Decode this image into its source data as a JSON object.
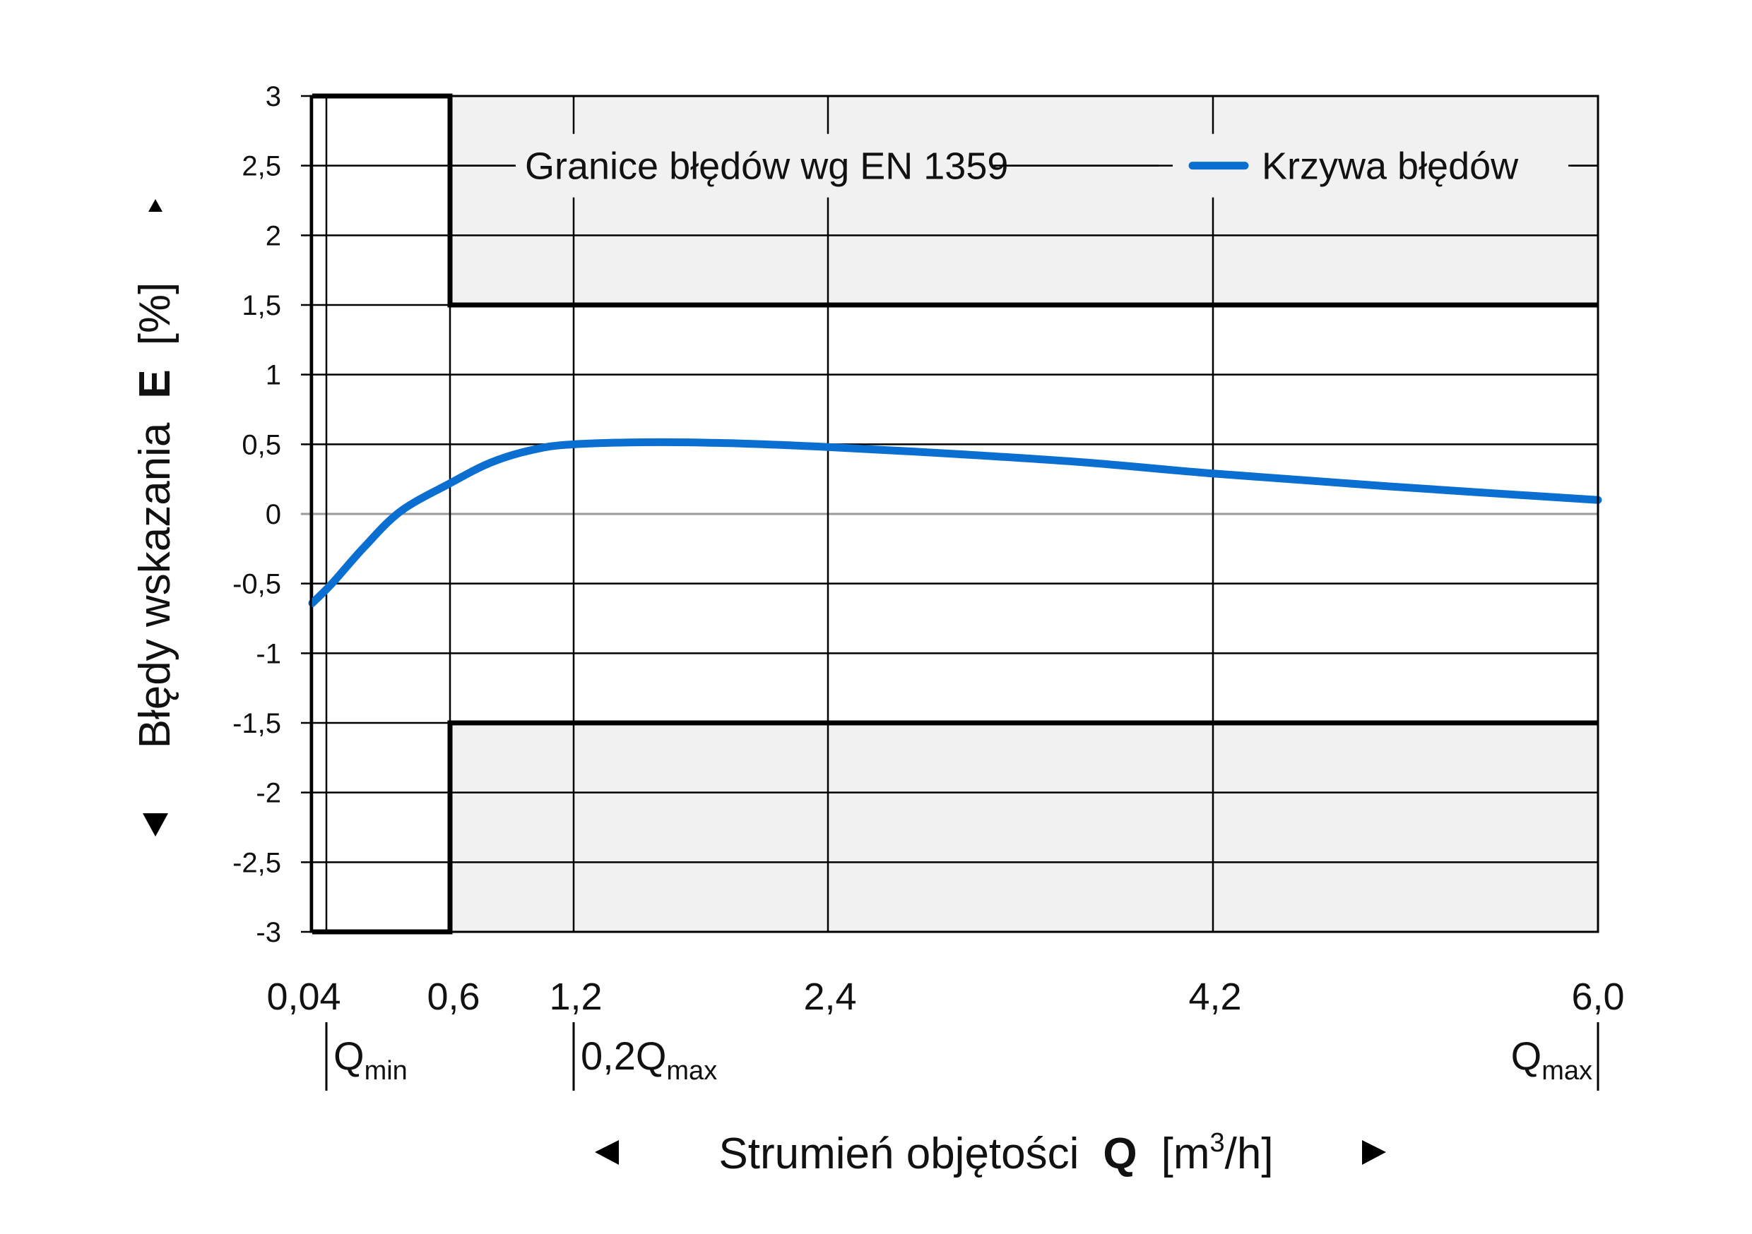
{
  "chart_data": {
    "type": "line",
    "ylabel": {
      "text": "Błędy wskazania",
      "symbol": "E",
      "unit": "[%]"
    },
    "xlabel": {
      "text": "Strumień objętości",
      "symbol": "Q",
      "unit_open": "[m",
      "unit_sup": "3",
      "unit_close": "/h]"
    },
    "ylim": [
      -3,
      3
    ],
    "y_ticks": [
      {
        "v": 3,
        "label": "3"
      },
      {
        "v": 2.5,
        "label": "2,5"
      },
      {
        "v": 2,
        "label": "2"
      },
      {
        "v": 1.5,
        "label": "1,5"
      },
      {
        "v": 1,
        "label": "1"
      },
      {
        "v": 0.5,
        "label": "0,5"
      },
      {
        "v": 0,
        "label": "0"
      },
      {
        "v": -0.5,
        "label": "-0,5"
      },
      {
        "v": -1,
        "label": "-1"
      },
      {
        "v": -1.5,
        "label": "-1,5"
      },
      {
        "v": -2,
        "label": "-2"
      },
      {
        "v": -2.5,
        "label": "-2,5"
      },
      {
        "v": -3,
        "label": "-3"
      }
    ],
    "x_ticks": [
      {
        "v": 0.04,
        "label": "0,04"
      },
      {
        "v": 0.6,
        "label": "0,6"
      },
      {
        "v": 1.2,
        "label": "1,2"
      },
      {
        "v": 2.4,
        "label": "2,4"
      },
      {
        "v": 4.2,
        "label": "4,2"
      },
      {
        "v": 6.0,
        "label": "6,0"
      }
    ],
    "x_markers": [
      {
        "v": 0.04,
        "main": "Q",
        "sub": "min",
        "side": "right"
      },
      {
        "v": 1.2,
        "main": "0,2Q",
        "sub": "max",
        "side": "right"
      },
      {
        "v": 6.0,
        "main": "Q",
        "sub": "max",
        "side": "left"
      }
    ],
    "series": [
      {
        "name": "Krzywa błędów",
        "color": "#0a6fd0",
        "points": [
          [
            0.04,
            -0.64
          ],
          [
            0.12,
            -0.5
          ],
          [
            0.25,
            -0.24
          ],
          [
            0.4,
            0.02
          ],
          [
            0.6,
            0.22
          ],
          [
            0.8,
            0.37
          ],
          [
            1.0,
            0.46
          ],
          [
            1.2,
            0.5
          ],
          [
            1.6,
            0.515
          ],
          [
            2.0,
            0.505
          ],
          [
            2.4,
            0.48
          ],
          [
            3.0,
            0.43
          ],
          [
            3.6,
            0.37
          ],
          [
            4.2,
            0.29
          ],
          [
            5.0,
            0.2
          ],
          [
            6.0,
            0.1
          ]
        ]
      }
    ],
    "error_limits": {
      "name": "Granice błędów wg EN 1359",
      "color": "#000000",
      "upper": [
        [
          0.04,
          3
        ],
        [
          0.6,
          3
        ],
        [
          0.6,
          1.5
        ],
        [
          6.0,
          1.5
        ]
      ],
      "lower": [
        [
          0.04,
          -3
        ],
        [
          0.6,
          -3
        ],
        [
          0.6,
          -1.5
        ],
        [
          6.0,
          -1.5
        ]
      ]
    },
    "shaded_regions_color": "#f1f1f1",
    "grid": true,
    "legend_position": "top-right",
    "y_arrows": [
      "up",
      "down"
    ],
    "x_arrows": [
      "left",
      "right"
    ]
  }
}
